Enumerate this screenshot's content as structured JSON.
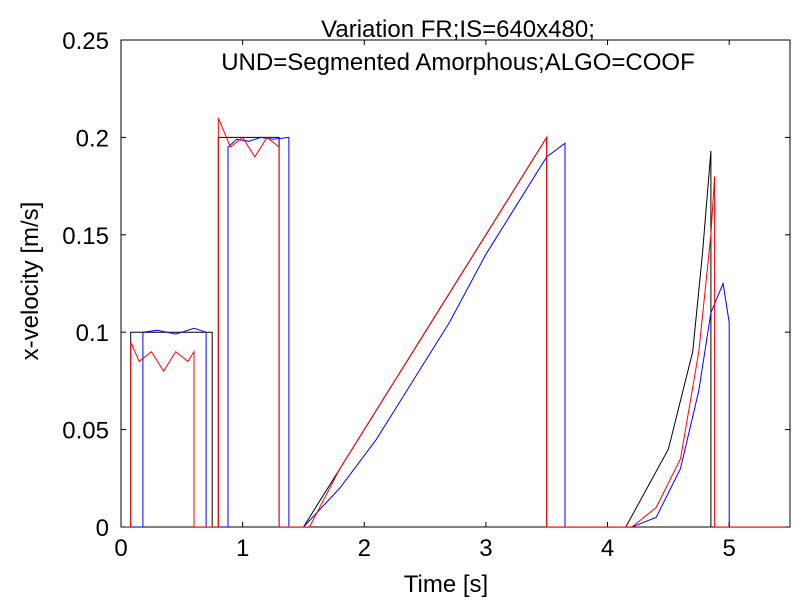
{
  "chart_data": {
    "type": "line",
    "title_lines": [
      "Variation FR;IS=640x480;",
      "UND=Segmented Amorphous;ALGO=COOF"
    ],
    "xlabel": "Time [s]",
    "ylabel": "x-velocity [m/s]",
    "xlim": [
      0,
      5.5
    ],
    "ylim": [
      0,
      0.25
    ],
    "xticks": [
      0,
      1,
      2,
      3,
      4,
      5
    ],
    "xtick_labels": [
      "0",
      "1",
      "2",
      "3",
      "4",
      "5"
    ],
    "yticks": [
      0,
      0.05,
      0.1,
      0.15,
      0.2,
      0.25
    ],
    "ytick_labels": [
      "0",
      "0.05",
      "0.1",
      "0.15",
      "0.2",
      "0.25"
    ],
    "grid": false,
    "legend": "none",
    "series": [
      {
        "color": "#000000",
        "x": [
          0,
          0.08,
          0.08,
          0.75,
          0.75,
          0.8,
          0.8,
          1.3,
          1.3,
          1.5,
          2.0,
          2.5,
          3.0,
          3.5,
          3.5,
          4.15,
          4.5,
          4.7,
          4.78,
          4.85,
          4.85,
          5.5
        ],
        "y": [
          0,
          0,
          0.1,
          0.1,
          0,
          0,
          0.2,
          0.2,
          0,
          0,
          0.05,
          0.1,
          0.15,
          0.2,
          0,
          0,
          0.04,
          0.09,
          0.14,
          0.193,
          0,
          0
        ]
      },
      {
        "color": "#0000ff",
        "x": [
          0,
          0.18,
          0.18,
          0.3,
          0.45,
          0.6,
          0.7,
          0.7,
          0.88,
          0.88,
          0.95,
          1.05,
          1.15,
          1.25,
          1.38,
          1.38,
          1.5,
          1.8,
          2.1,
          2.4,
          2.7,
          3.0,
          3.3,
          3.5,
          3.65,
          3.65,
          4.2,
          4.4,
          4.6,
          4.75,
          4.85,
          4.95,
          5.0,
          5.0,
          5.5
        ],
        "y": [
          0,
          0,
          0.1,
          0.101,
          0.099,
          0.102,
          0.1,
          0,
          0,
          0.195,
          0.199,
          0.198,
          0.2,
          0.199,
          0.2,
          0,
          0,
          0.02,
          0.045,
          0.075,
          0.105,
          0.14,
          0.17,
          0.19,
          0.197,
          0,
          0,
          0.005,
          0.03,
          0.07,
          0.11,
          0.125,
          0.105,
          0,
          0
        ]
      },
      {
        "color": "#ff0000",
        "x": [
          0,
          0.08,
          0.08,
          0.15,
          0.25,
          0.35,
          0.45,
          0.55,
          0.6,
          0.6,
          0.8,
          0.8,
          0.9,
          1.0,
          1.1,
          1.2,
          1.3,
          1.3,
          1.55,
          1.8,
          2.1,
          2.4,
          2.7,
          3.0,
          3.2,
          3.4,
          3.5,
          3.5,
          4.2,
          4.4,
          4.6,
          4.75,
          4.85,
          4.88,
          4.88,
          5.5
        ],
        "y": [
          0,
          0,
          0.095,
          0.085,
          0.09,
          0.08,
          0.09,
          0.085,
          0.09,
          0,
          0,
          0.21,
          0.195,
          0.2,
          0.19,
          0.2,
          0.195,
          0,
          0,
          0.03,
          0.06,
          0.09,
          0.12,
          0.15,
          0.17,
          0.19,
          0.2,
          0,
          0,
          0.01,
          0.035,
          0.09,
          0.15,
          0.18,
          0,
          0
        ]
      }
    ]
  }
}
